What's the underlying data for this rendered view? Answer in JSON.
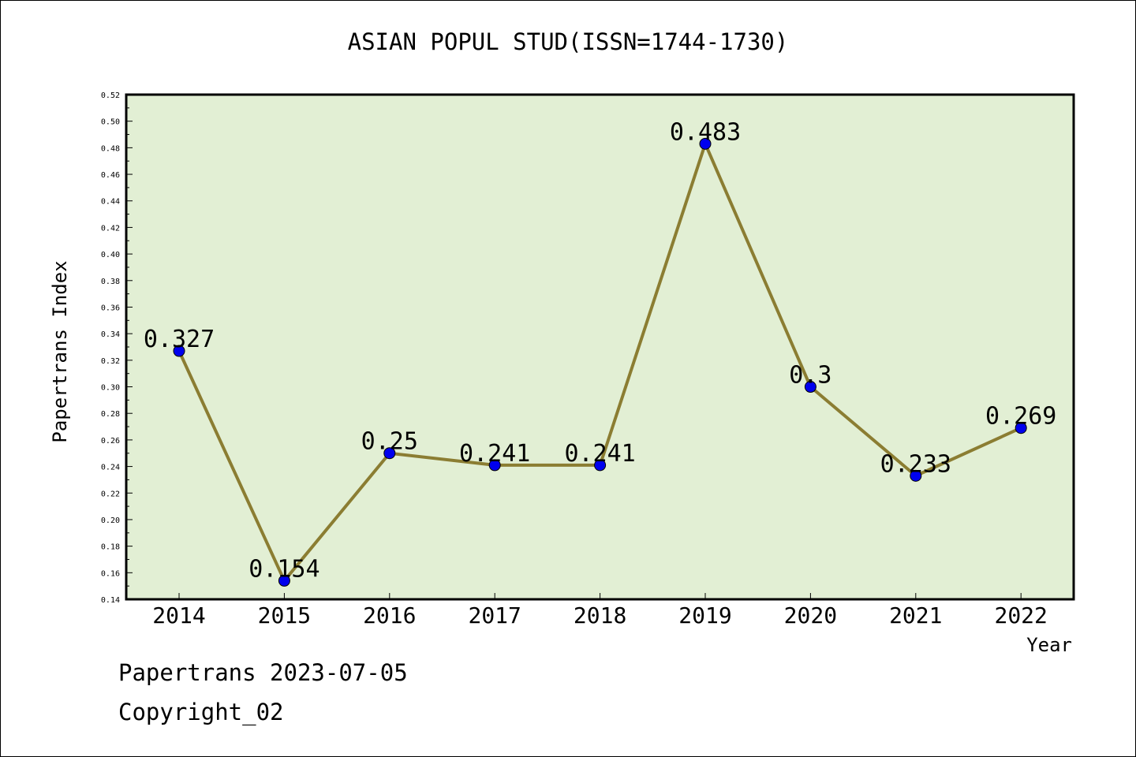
{
  "page": {
    "title": "ASIAN POPUL STUD(ISSN=1744-1730)",
    "footer_line1": "Papertrans 2023-07-05",
    "footer_line2": "Copyright_02"
  },
  "chart_data": {
    "type": "line",
    "title": "ASIAN POPUL STUD(ISSN=1744-1730)",
    "xlabel": "Year",
    "ylabel": "Papertrans Index",
    "categories": [
      "2014",
      "2015",
      "2016",
      "2017",
      "2018",
      "2019",
      "2020",
      "2021",
      "2022"
    ],
    "series": [
      {
        "values": [
          0.327,
          0.154,
          0.25,
          0.241,
          0.241,
          0.483,
          0.3,
          0.233,
          0.269
        ]
      }
    ],
    "data_labels": [
      "0.327",
      "0.154",
      "0.25",
      "0.241",
      "0.241",
      "0.483",
      "0.3",
      "0.233",
      "0.269"
    ],
    "ylim": [
      0.14,
      0.52
    ],
    "ytick_step": 0.02,
    "grid": false,
    "legend": "none",
    "colors": {
      "plot_background": "#e2efd4",
      "line": "#8b7d32",
      "marker": "#0000ee"
    }
  }
}
